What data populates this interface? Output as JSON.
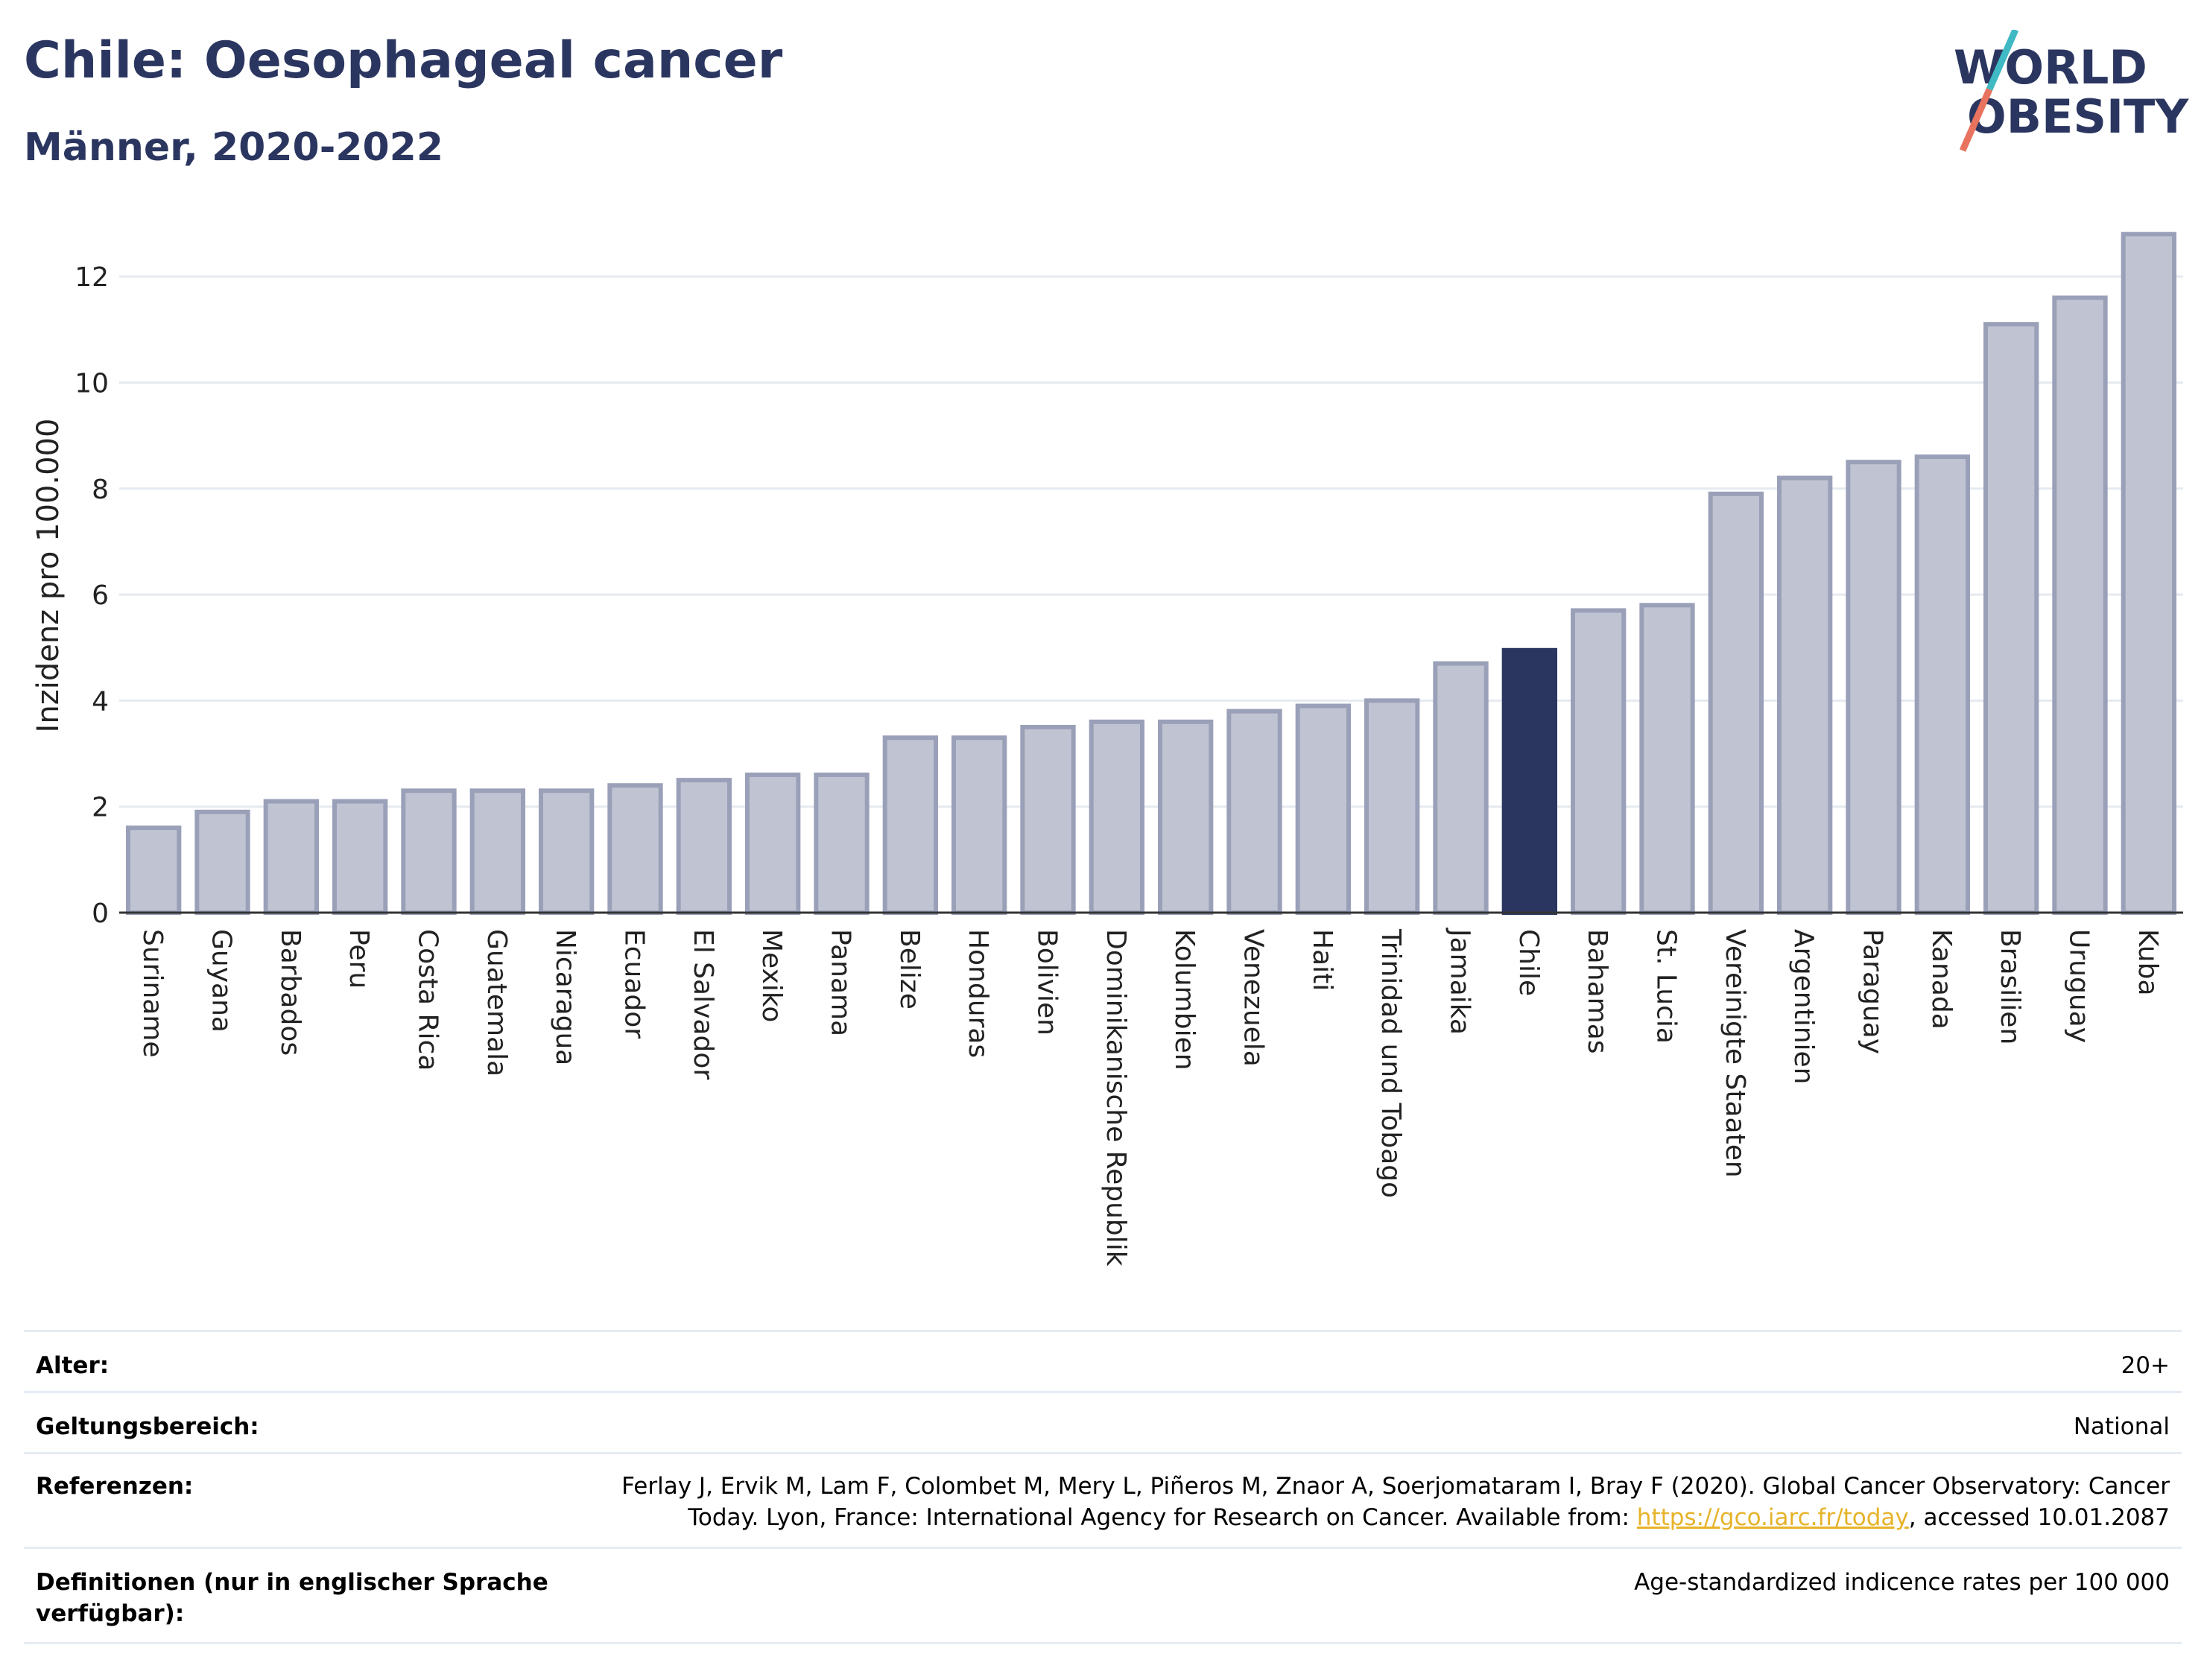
{
  "header": {
    "title": "Chile: Oesophageal cancer",
    "subtitle": "Männer, 2020-2022",
    "logo_line1": "WORLD",
    "logo_line2": "OBESITY"
  },
  "colors": {
    "title": "#2b3660",
    "bar": "#c0c4d2",
    "bar_stroke": "#9aa0b8",
    "highlight": "#2b3660",
    "link": "#e6b32a"
  },
  "chart_data": {
    "type": "bar",
    "ylabel": "Inzidenz pro 100.000",
    "ylim": [
      0,
      13
    ],
    "yticks": [
      0,
      2,
      4,
      6,
      8,
      10,
      12
    ],
    "grid": true,
    "highlight": "Chile",
    "categories": [
      "Suriname",
      "Guyana",
      "Barbados",
      "Peru",
      "Costa Rica",
      "Guatemala",
      "Nicaragua",
      "Ecuador",
      "El Salvador",
      "Mexiko",
      "Panama",
      "Belize",
      "Honduras",
      "Bolivien",
      "Dominikanische Republik",
      "Kolumbien",
      "Venezuela",
      "Haiti",
      "Trinidad und Tobago",
      "Jamaika",
      "Chile",
      "Bahamas",
      "St. Lucia",
      "Vereinigte Staaten",
      "Argentinien",
      "Paraguay",
      "Kanada",
      "Brasilien",
      "Uruguay",
      "Kuba"
    ],
    "values": [
      1.6,
      1.9,
      2.1,
      2.1,
      2.3,
      2.3,
      2.3,
      2.4,
      2.5,
      2.6,
      2.6,
      3.3,
      3.3,
      3.5,
      3.6,
      3.6,
      3.8,
      3.9,
      4.0,
      4.7,
      4.95,
      5.7,
      5.8,
      7.9,
      8.2,
      8.5,
      8.6,
      11.1,
      11.6,
      12.8
    ]
  },
  "meta": [
    {
      "label": "Alter:",
      "value": "20+"
    },
    {
      "label": "Geltungsbereich:",
      "value": "National"
    },
    {
      "label": "Referenzen:",
      "value_pre": "Ferlay J, Ervik M, Lam F, Colombet M, Mery L, Piñeros M, Znaor A, Soerjomataram I, Bray F (2020). Global Cancer Observatory: Cancer Today. Lyon, France: International Agency for Research on Cancer. Available from: ",
      "link": "https://gco.iarc.fr/today",
      "value_post": ", accessed 10.01.2087"
    },
    {
      "label": "Definitionen (nur in englischer Sprache verfügbar):",
      "value": "Age-standardized indicence rates per 100 000"
    }
  ]
}
